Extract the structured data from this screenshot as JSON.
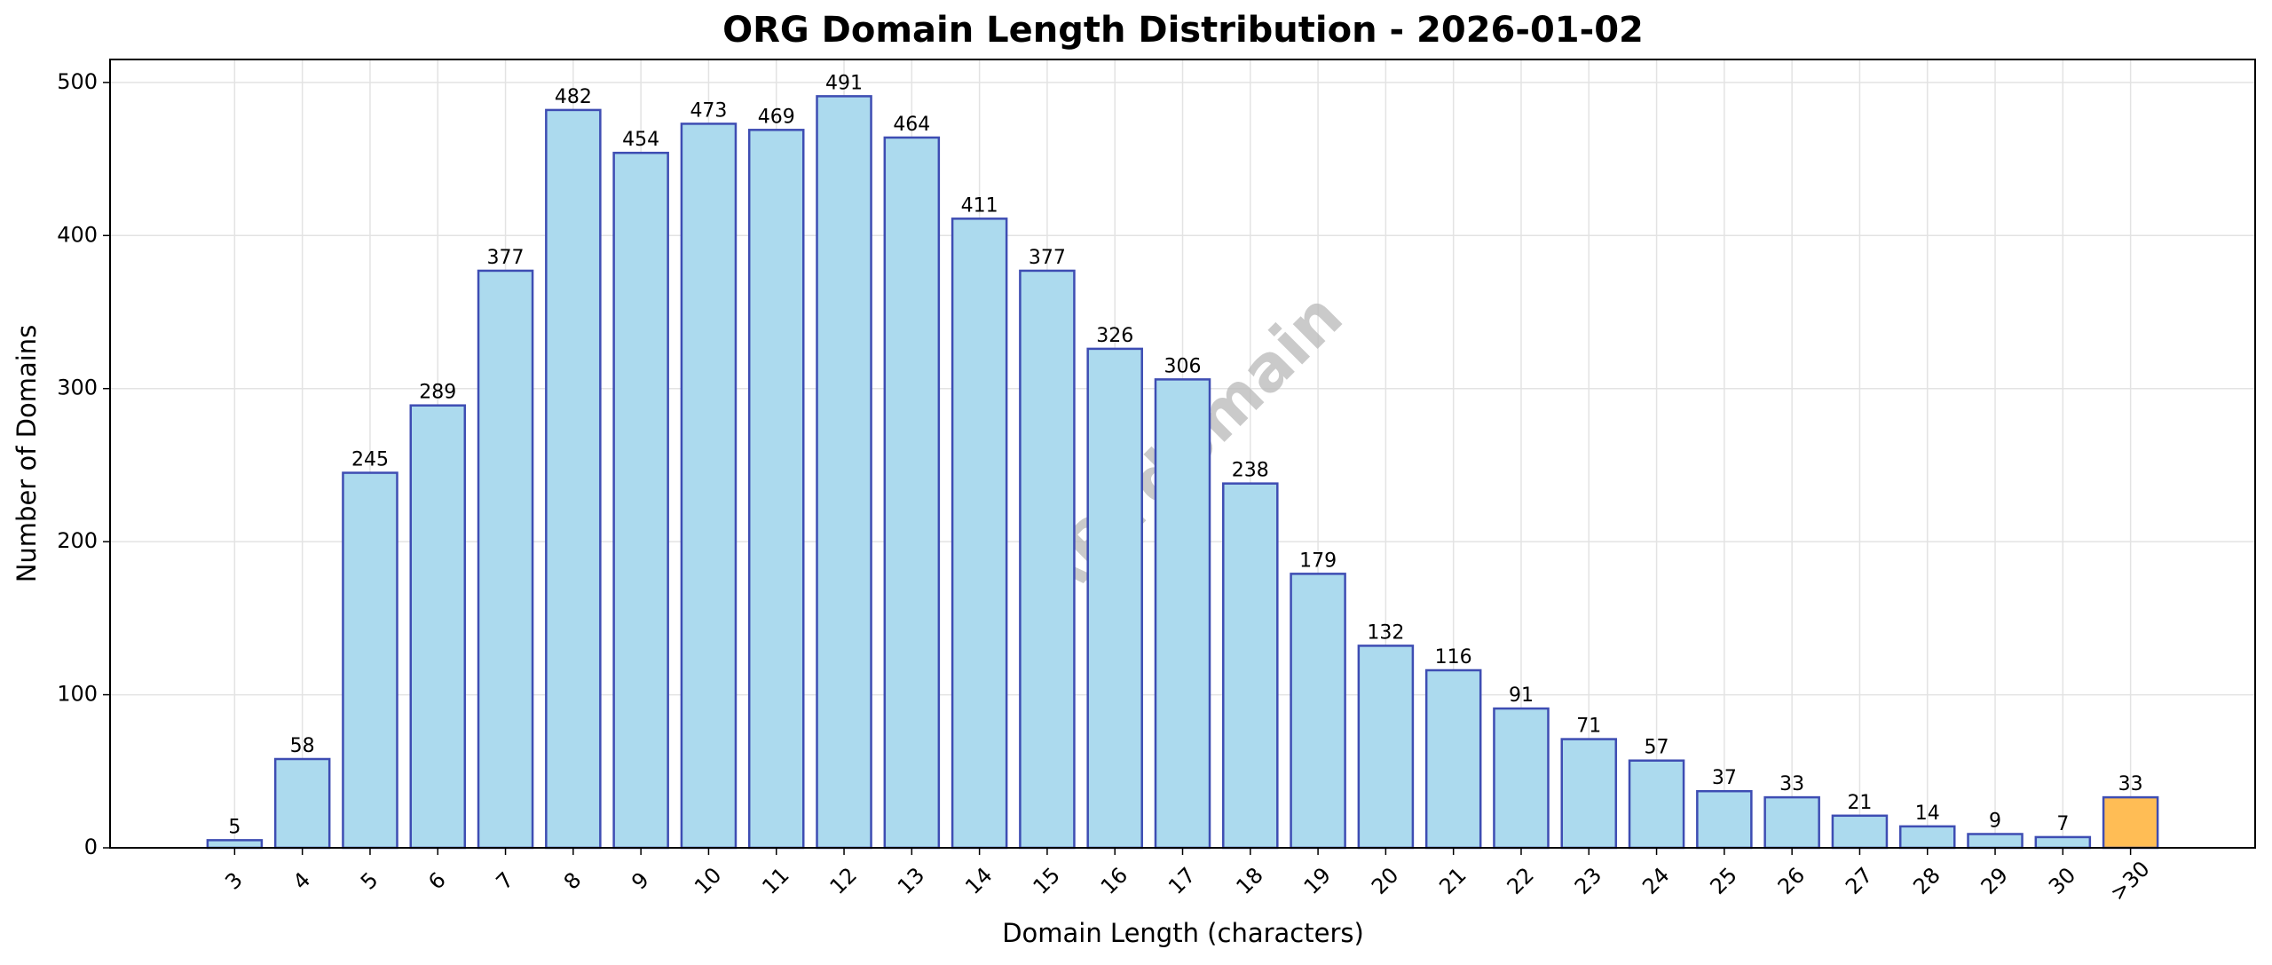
{
  "chart_data": {
    "type": "bar",
    "title": "ORG Domain Length Distribution - 2026-01-02",
    "x_label": "Domain Length (characters)",
    "y_label": "Number of Domains",
    "watermark": "ABTdomain",
    "categories": [
      "3",
      "4",
      "5",
      "6",
      "7",
      "8",
      "9",
      "10",
      "11",
      "12",
      "13",
      "14",
      "15",
      "16",
      "17",
      "18",
      "19",
      "20",
      "21",
      "22",
      "23",
      "24",
      "25",
      "26",
      "27",
      "28",
      "29",
      "30",
      ">30"
    ],
    "values": [
      5,
      58,
      245,
      289,
      377,
      482,
      454,
      473,
      469,
      491,
      464,
      411,
      377,
      326,
      306,
      238,
      179,
      132,
      116,
      91,
      71,
      57,
      37,
      33,
      21,
      14,
      9,
      7,
      33
    ],
    "colors": [
      "#acdaee",
      "#acdaee",
      "#acdaee",
      "#acdaee",
      "#acdaee",
      "#acdaee",
      "#acdaee",
      "#acdaee",
      "#acdaee",
      "#acdaee",
      "#acdaee",
      "#acdaee",
      "#acdaee",
      "#acdaee",
      "#acdaee",
      "#acdaee",
      "#acdaee",
      "#acdaee",
      "#acdaee",
      "#acdaee",
      "#acdaee",
      "#acdaee",
      "#acdaee",
      "#acdaee",
      "#acdaee",
      "#acdaee",
      "#acdaee",
      "#acdaee",
      "#ffbd55"
    ],
    "edge_color": "#3e4db3",
    "ylim": [
      0,
      515
    ],
    "yticks": [
      0,
      100,
      200,
      300,
      400,
      500
    ],
    "grid": true
  }
}
